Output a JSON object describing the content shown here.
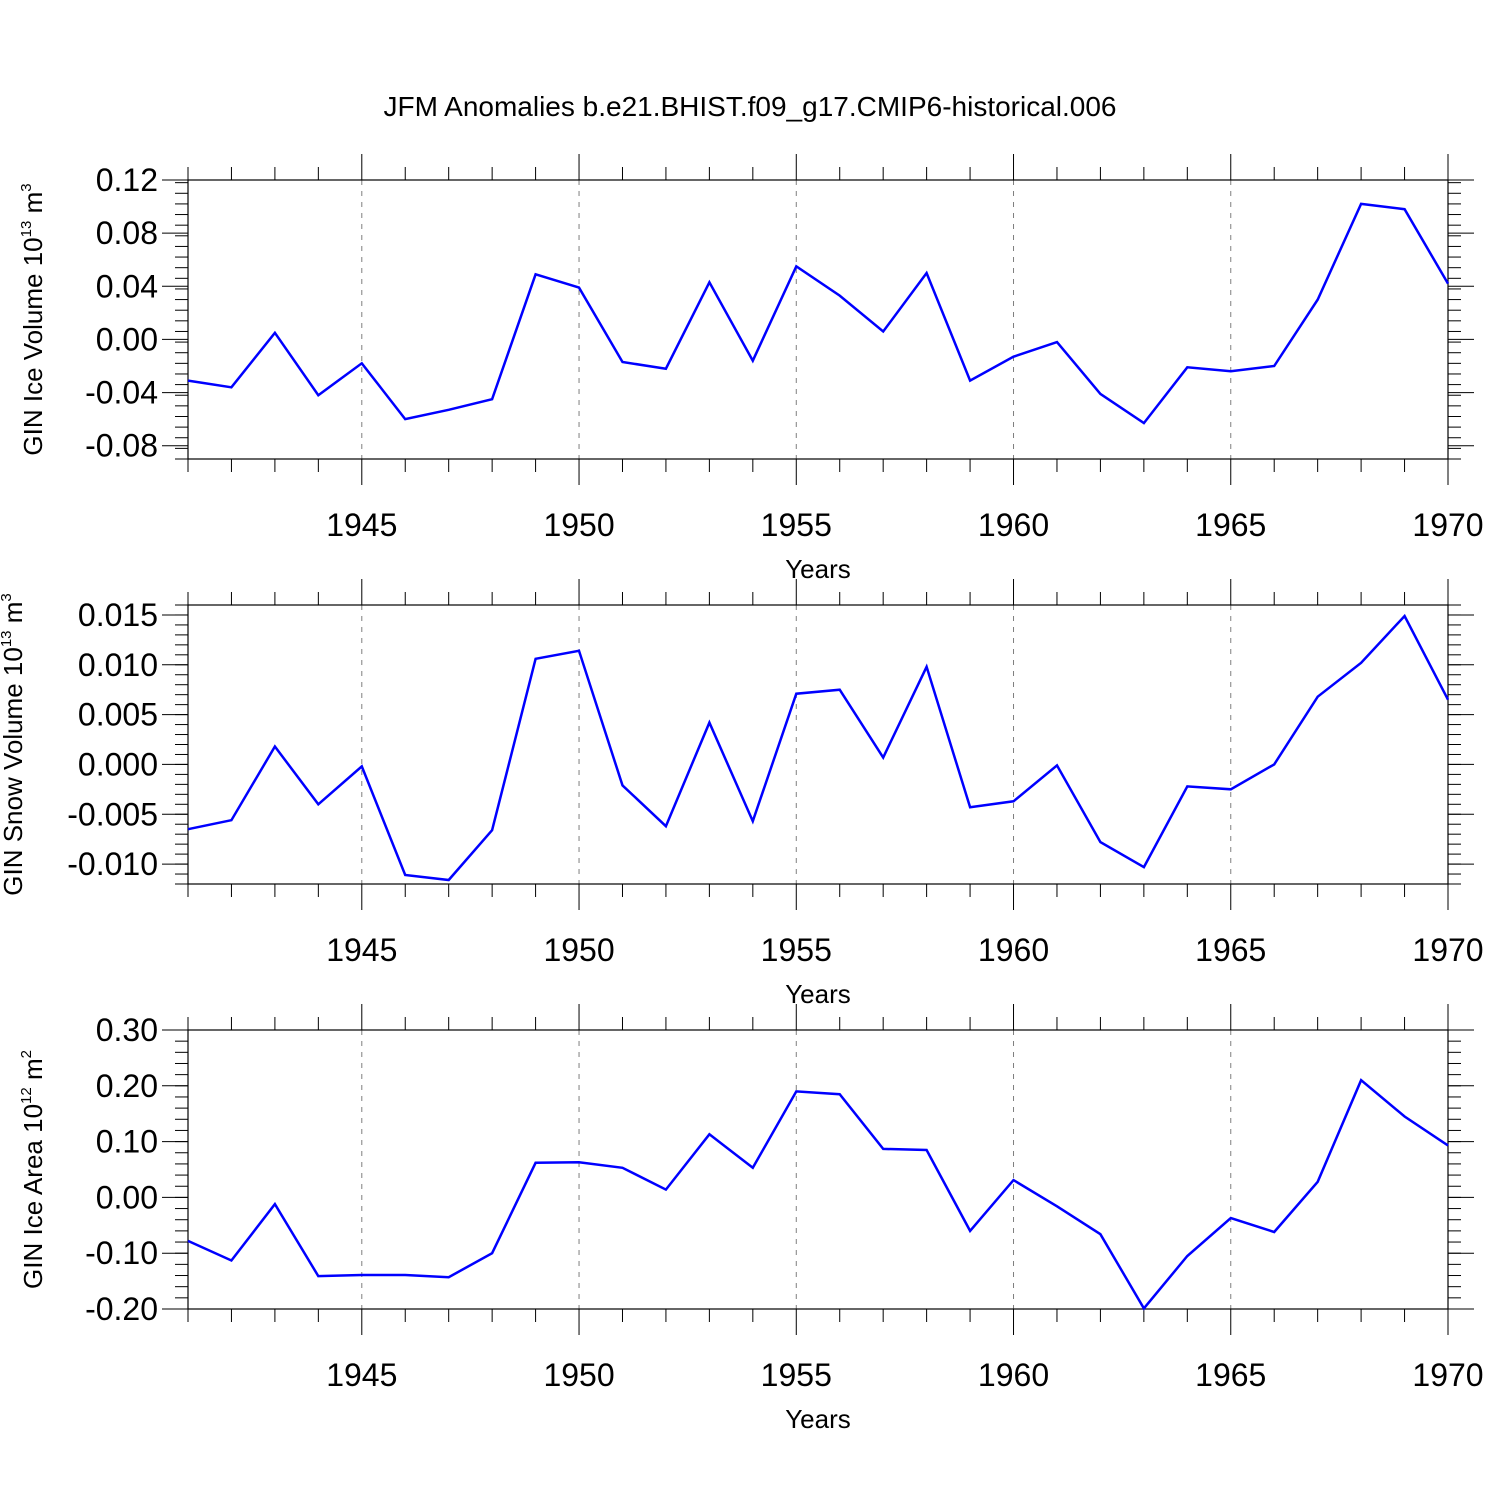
{
  "figure": {
    "title": "JFM Anomalies b.e21.BHIST.f09_g17.CMIP6-historical.006"
  },
  "style": {
    "line_color": "#0000ff",
    "axis_color": "#000000",
    "grid_color": "#7f7f7f"
  },
  "chart_data": [
    {
      "type": "line",
      "title": "JFM Anomalies b.e21.BHIST.f09_g17.CMIP6-historical.006",
      "xlabel": "Years",
      "ylabel": {
        "main": "GIN Ice Volume 10",
        "sup": "13",
        "unit": " m",
        "unit_sup": "3"
      },
      "xlim": [
        1941,
        1970
      ],
      "ylim": [
        -0.09,
        0.12
      ],
      "x_ticks": [
        1945,
        1950,
        1955,
        1960,
        1965,
        1970
      ],
      "y_ticks": [
        -0.08,
        -0.04,
        0.0,
        0.04,
        0.08,
        0.12
      ],
      "y_tick_labels": [
        "-0.08",
        "-0.04",
        "0.00",
        "0.04",
        "0.08",
        "0.12"
      ],
      "y_minor_step": 0.008,
      "grid": "vertical dashed at major x ticks",
      "x": [
        1941,
        1942,
        1943,
        1944,
        1945,
        1946,
        1947,
        1948,
        1949,
        1950,
        1951,
        1952,
        1953,
        1954,
        1955,
        1956,
        1957,
        1958,
        1959,
        1960,
        1961,
        1962,
        1963,
        1964,
        1965,
        1966,
        1967,
        1968,
        1969,
        1970
      ],
      "series": [
        {
          "name": "GIN Ice Volume",
          "values": [
            -0.031,
            -0.036,
            0.005,
            -0.042,
            -0.018,
            -0.06,
            -0.053,
            -0.045,
            0.049,
            0.039,
            -0.017,
            -0.022,
            0.043,
            -0.016,
            0.055,
            0.033,
            0.006,
            0.05,
            -0.031,
            -0.013,
            -0.002,
            -0.041,
            -0.063,
            -0.021,
            -0.024,
            -0.02,
            0.03,
            0.102,
            0.098,
            0.042
          ]
        }
      ]
    },
    {
      "type": "line",
      "title": "",
      "xlabel": "Years",
      "ylabel": {
        "main": "GIN Snow Volume 10",
        "sup": "13",
        "unit": " m",
        "unit_sup": "3"
      },
      "xlim": [
        1941,
        1970
      ],
      "ylim": [
        -0.012,
        0.016
      ],
      "x_ticks": [
        1945,
        1950,
        1955,
        1960,
        1965,
        1970
      ],
      "y_ticks": [
        -0.01,
        -0.005,
        0.0,
        0.005,
        0.01,
        0.015
      ],
      "y_tick_labels": [
        "-0.010",
        "-0.005",
        "0.000",
        "0.005",
        "0.010",
        "0.015"
      ],
      "y_minor_step": 0.001,
      "grid": "vertical dashed at major x ticks",
      "x": [
        1941,
        1942,
        1943,
        1944,
        1945,
        1946,
        1947,
        1948,
        1949,
        1950,
        1951,
        1952,
        1953,
        1954,
        1955,
        1956,
        1957,
        1958,
        1959,
        1960,
        1961,
        1962,
        1963,
        1964,
        1965,
        1966,
        1967,
        1968,
        1969,
        1970
      ],
      "series": [
        {
          "name": "GIN Snow Volume",
          "values": [
            -0.0065,
            -0.0056,
            0.0018,
            -0.004,
            -0.0002,
            -0.0111,
            -0.0116,
            -0.0066,
            0.0106,
            0.0114,
            -0.0021,
            -0.0062,
            0.0042,
            -0.0057,
            0.0071,
            0.0075,
            0.0007,
            0.0098,
            -0.0043,
            -0.0037,
            -0.0001,
            -0.0078,
            -0.0103,
            -0.0022,
            -0.0025,
            0.0,
            0.0068,
            0.0102,
            0.0149,
            0.0065
          ]
        }
      ]
    },
    {
      "type": "line",
      "title": "",
      "xlabel": "Years",
      "ylabel": {
        "main": "GIN Ice Area 10",
        "sup": "12",
        "unit": " m",
        "unit_sup": "2"
      },
      "xlim": [
        1941,
        1970
      ],
      "ylim": [
        -0.2,
        0.3
      ],
      "x_ticks": [
        1945,
        1950,
        1955,
        1960,
        1965,
        1970
      ],
      "y_ticks": [
        -0.2,
        -0.1,
        0.0,
        0.1,
        0.2,
        0.3
      ],
      "y_tick_labels": [
        "-0.20",
        "-0.10",
        "0.00",
        "0.10",
        "0.20",
        "0.30"
      ],
      "y_minor_step": 0.02,
      "grid": "vertical dashed at major x ticks",
      "x": [
        1941,
        1942,
        1943,
        1944,
        1945,
        1946,
        1947,
        1948,
        1949,
        1950,
        1951,
        1952,
        1953,
        1954,
        1955,
        1956,
        1957,
        1958,
        1959,
        1960,
        1961,
        1962,
        1963,
        1964,
        1965,
        1966,
        1967,
        1968,
        1969,
        1970
      ],
      "series": [
        {
          "name": "GIN Ice Area",
          "values": [
            -0.078,
            -0.113,
            -0.012,
            -0.141,
            -0.139,
            -0.139,
            -0.143,
            -0.1,
            0.062,
            0.063,
            0.053,
            0.014,
            0.113,
            0.053,
            0.19,
            0.185,
            0.087,
            0.085,
            -0.06,
            0.031,
            -0.016,
            -0.066,
            -0.199,
            -0.105,
            -0.037,
            -0.062,
            0.028,
            0.21,
            0.145,
            0.093
          ]
        }
      ]
    }
  ]
}
